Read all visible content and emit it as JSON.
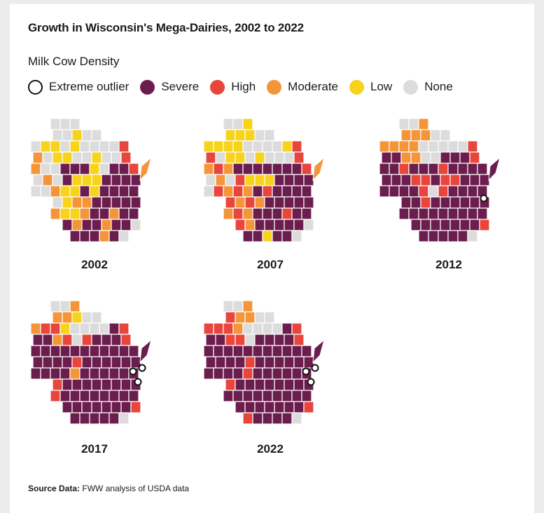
{
  "title": "Growth in Wisconsin's Mega-Dairies, 2002 to 2022",
  "legend": {
    "title": "Milk Cow Density",
    "items": [
      {
        "label": "Extreme outlier",
        "color": "#ffffff",
        "outline": true
      },
      {
        "label": "Severe",
        "color": "#6b1d4e"
      },
      {
        "label": "High",
        "color": "#e8453c"
      },
      {
        "label": "Moderate",
        "color": "#f5953a"
      },
      {
        "label": "Low",
        "color": "#f7d31c"
      },
      {
        "label": "None",
        "color": "#dcdcdc"
      }
    ]
  },
  "maps": [
    {
      "year": "2002",
      "outliers": 0
    },
    {
      "year": "2007",
      "outliers": 0
    },
    {
      "year": "2012",
      "outliers": 1
    },
    {
      "year": "2017",
      "outliers": 3
    },
    {
      "year": "2022",
      "outliers": 3
    }
  ],
  "source": {
    "label": "Source Data:",
    "text": "FWW analysis of USDA data"
  }
}
